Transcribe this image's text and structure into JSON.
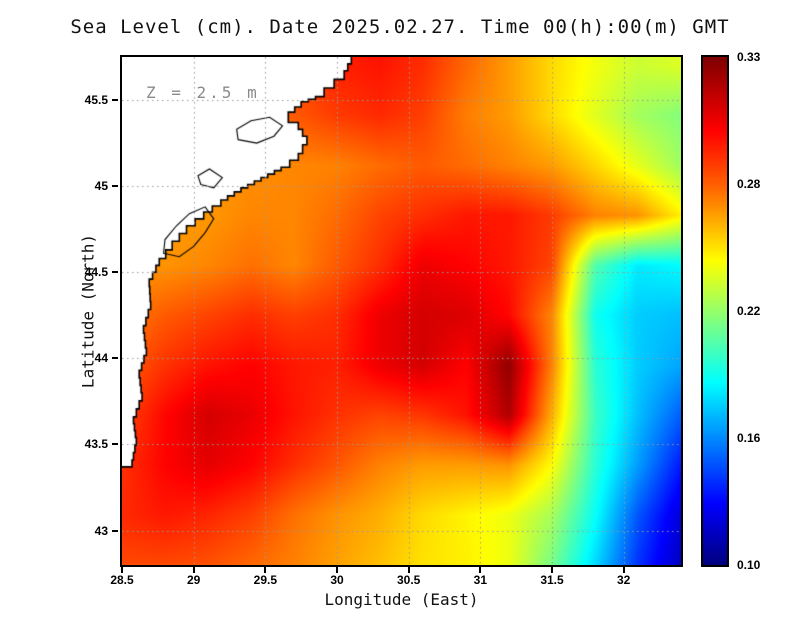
{
  "chart_data": {
    "type": "heatmap",
    "title": "Sea Level (cm). Date 2025.02.27. Time 00(h):00(m) GMT",
    "xlabel": "Longitude (East)",
    "ylabel": "Latitude (North)",
    "annotation": "Z = 2.5 m",
    "x_range": [
      28.5,
      32.4
    ],
    "y_range": [
      42.8,
      45.75
    ],
    "x_ticks": [
      28.5,
      29,
      29.5,
      30,
      30.5,
      31,
      31.5,
      32
    ],
    "y_ticks": [
      43,
      43.5,
      44,
      44.5,
      45,
      45.5
    ],
    "value_range": [
      0.1,
      0.33
    ],
    "colorbar": {
      "labels": [
        "0.33",
        "0.28",
        "0.22",
        "0.16",
        "0.10"
      ]
    },
    "grid": {
      "lons": [
        28.5,
        28.8,
        29.1,
        29.4,
        29.7,
        30.0,
        30.3,
        30.6,
        30.9,
        31.2,
        31.5,
        31.8,
        32.1,
        32.4
      ],
      "lats": [
        42.8,
        43.09,
        43.38,
        43.67,
        43.96,
        44.25,
        44.54,
        44.83,
        45.12,
        45.41,
        45.7
      ],
      "values": [
        [
          0.285,
          0.285,
          0.283,
          0.278,
          0.272,
          0.265,
          0.258,
          0.25,
          0.247,
          0.24,
          0.213,
          0.178,
          0.14,
          0.114
        ],
        [
          0.292,
          0.296,
          0.293,
          0.287,
          0.276,
          0.268,
          0.262,
          0.252,
          0.246,
          0.24,
          0.224,
          0.188,
          0.148,
          0.12
        ],
        [
          0.29,
          0.301,
          0.307,
          0.301,
          0.291,
          0.282,
          0.272,
          0.266,
          0.266,
          0.268,
          0.244,
          0.196,
          0.164,
          0.134
        ],
        [
          0.285,
          0.3,
          0.311,
          0.306,
          0.297,
          0.29,
          0.286,
          0.289,
          0.297,
          0.319,
          0.262,
          0.2,
          0.172,
          0.15
        ],
        [
          0.28,
          0.29,
          0.297,
          0.301,
          0.296,
          0.294,
          0.305,
          0.311,
          0.301,
          0.326,
          0.272,
          0.196,
          0.175,
          0.166
        ],
        [
          0.273,
          0.281,
          0.286,
          0.291,
          0.287,
          0.291,
          0.305,
          0.311,
          0.309,
          0.3,
          0.271,
          0.19,
          0.175,
          0.172
        ],
        [
          0.268,
          0.268,
          0.271,
          0.276,
          0.271,
          0.281,
          0.291,
          0.305,
          0.301,
          0.296,
          0.286,
          0.205,
          0.182,
          0.186
        ],
        [
          0.266,
          0.265,
          0.267,
          0.271,
          0.271,
          0.277,
          0.286,
          0.291,
          0.296,
          0.296,
          0.288,
          0.272,
          0.268,
          0.247
        ],
        [
          0.266,
          0.266,
          0.267,
          0.269,
          0.271,
          0.272,
          0.277,
          0.281,
          0.277,
          0.272,
          0.266,
          0.253,
          0.238,
          0.222
        ],
        [
          0.271,
          0.271,
          0.273,
          0.276,
          0.281,
          0.288,
          0.292,
          0.287,
          0.273,
          0.266,
          0.252,
          0.237,
          0.223,
          0.216
        ],
        [
          0.273,
          0.273,
          0.275,
          0.279,
          0.286,
          0.294,
          0.297,
          0.291,
          0.278,
          0.266,
          0.252,
          0.241,
          0.232,
          0.236
        ]
      ]
    },
    "coastline": [
      [
        28.5,
        43.37
      ],
      [
        28.57,
        43.41
      ],
      [
        28.6,
        43.54
      ],
      [
        28.58,
        43.66
      ],
      [
        28.64,
        43.8
      ],
      [
        28.62,
        43.93
      ],
      [
        28.67,
        44.06
      ],
      [
        28.65,
        44.19
      ],
      [
        28.7,
        44.33
      ],
      [
        28.69,
        44.46
      ],
      [
        28.76,
        44.58
      ],
      [
        28.85,
        44.68
      ],
      [
        28.95,
        44.77
      ],
      [
        29.07,
        44.85
      ],
      [
        29.19,
        44.92
      ],
      [
        29.33,
        44.99
      ],
      [
        29.47,
        45.05
      ],
      [
        29.61,
        45.11
      ],
      [
        29.73,
        45.19
      ],
      [
        29.79,
        45.29
      ],
      [
        29.73,
        45.37
      ],
      [
        29.66,
        45.43
      ],
      [
        29.75,
        45.49
      ],
      [
        29.85,
        45.52
      ],
      [
        29.91,
        45.57
      ],
      [
        29.98,
        45.62
      ],
      [
        30.05,
        45.67
      ],
      [
        30.1,
        45.75
      ]
    ],
    "lagoons": [
      [
        [
          28.79,
          44.61
        ],
        [
          28.9,
          44.59
        ],
        [
          29.0,
          44.65
        ],
        [
          29.08,
          44.73
        ],
        [
          29.14,
          44.81
        ],
        [
          29.08,
          44.88
        ],
        [
          28.97,
          44.84
        ],
        [
          28.88,
          44.77
        ],
        [
          28.8,
          44.69
        ]
      ],
      [
        [
          29.31,
          45.27
        ],
        [
          29.44,
          45.25
        ],
        [
          29.56,
          45.29
        ],
        [
          29.62,
          45.35
        ],
        [
          29.53,
          45.4
        ],
        [
          29.4,
          45.38
        ],
        [
          29.3,
          45.33
        ]
      ],
      [
        [
          29.05,
          45.01
        ],
        [
          29.14,
          44.99
        ],
        [
          29.2,
          45.05
        ],
        [
          29.11,
          45.1
        ],
        [
          29.03,
          45.06
        ]
      ]
    ],
    "colors": {
      "land": "#ffffff",
      "coast": "#000000",
      "gridline": "#9a9a9a",
      "frame": "#000000"
    }
  }
}
